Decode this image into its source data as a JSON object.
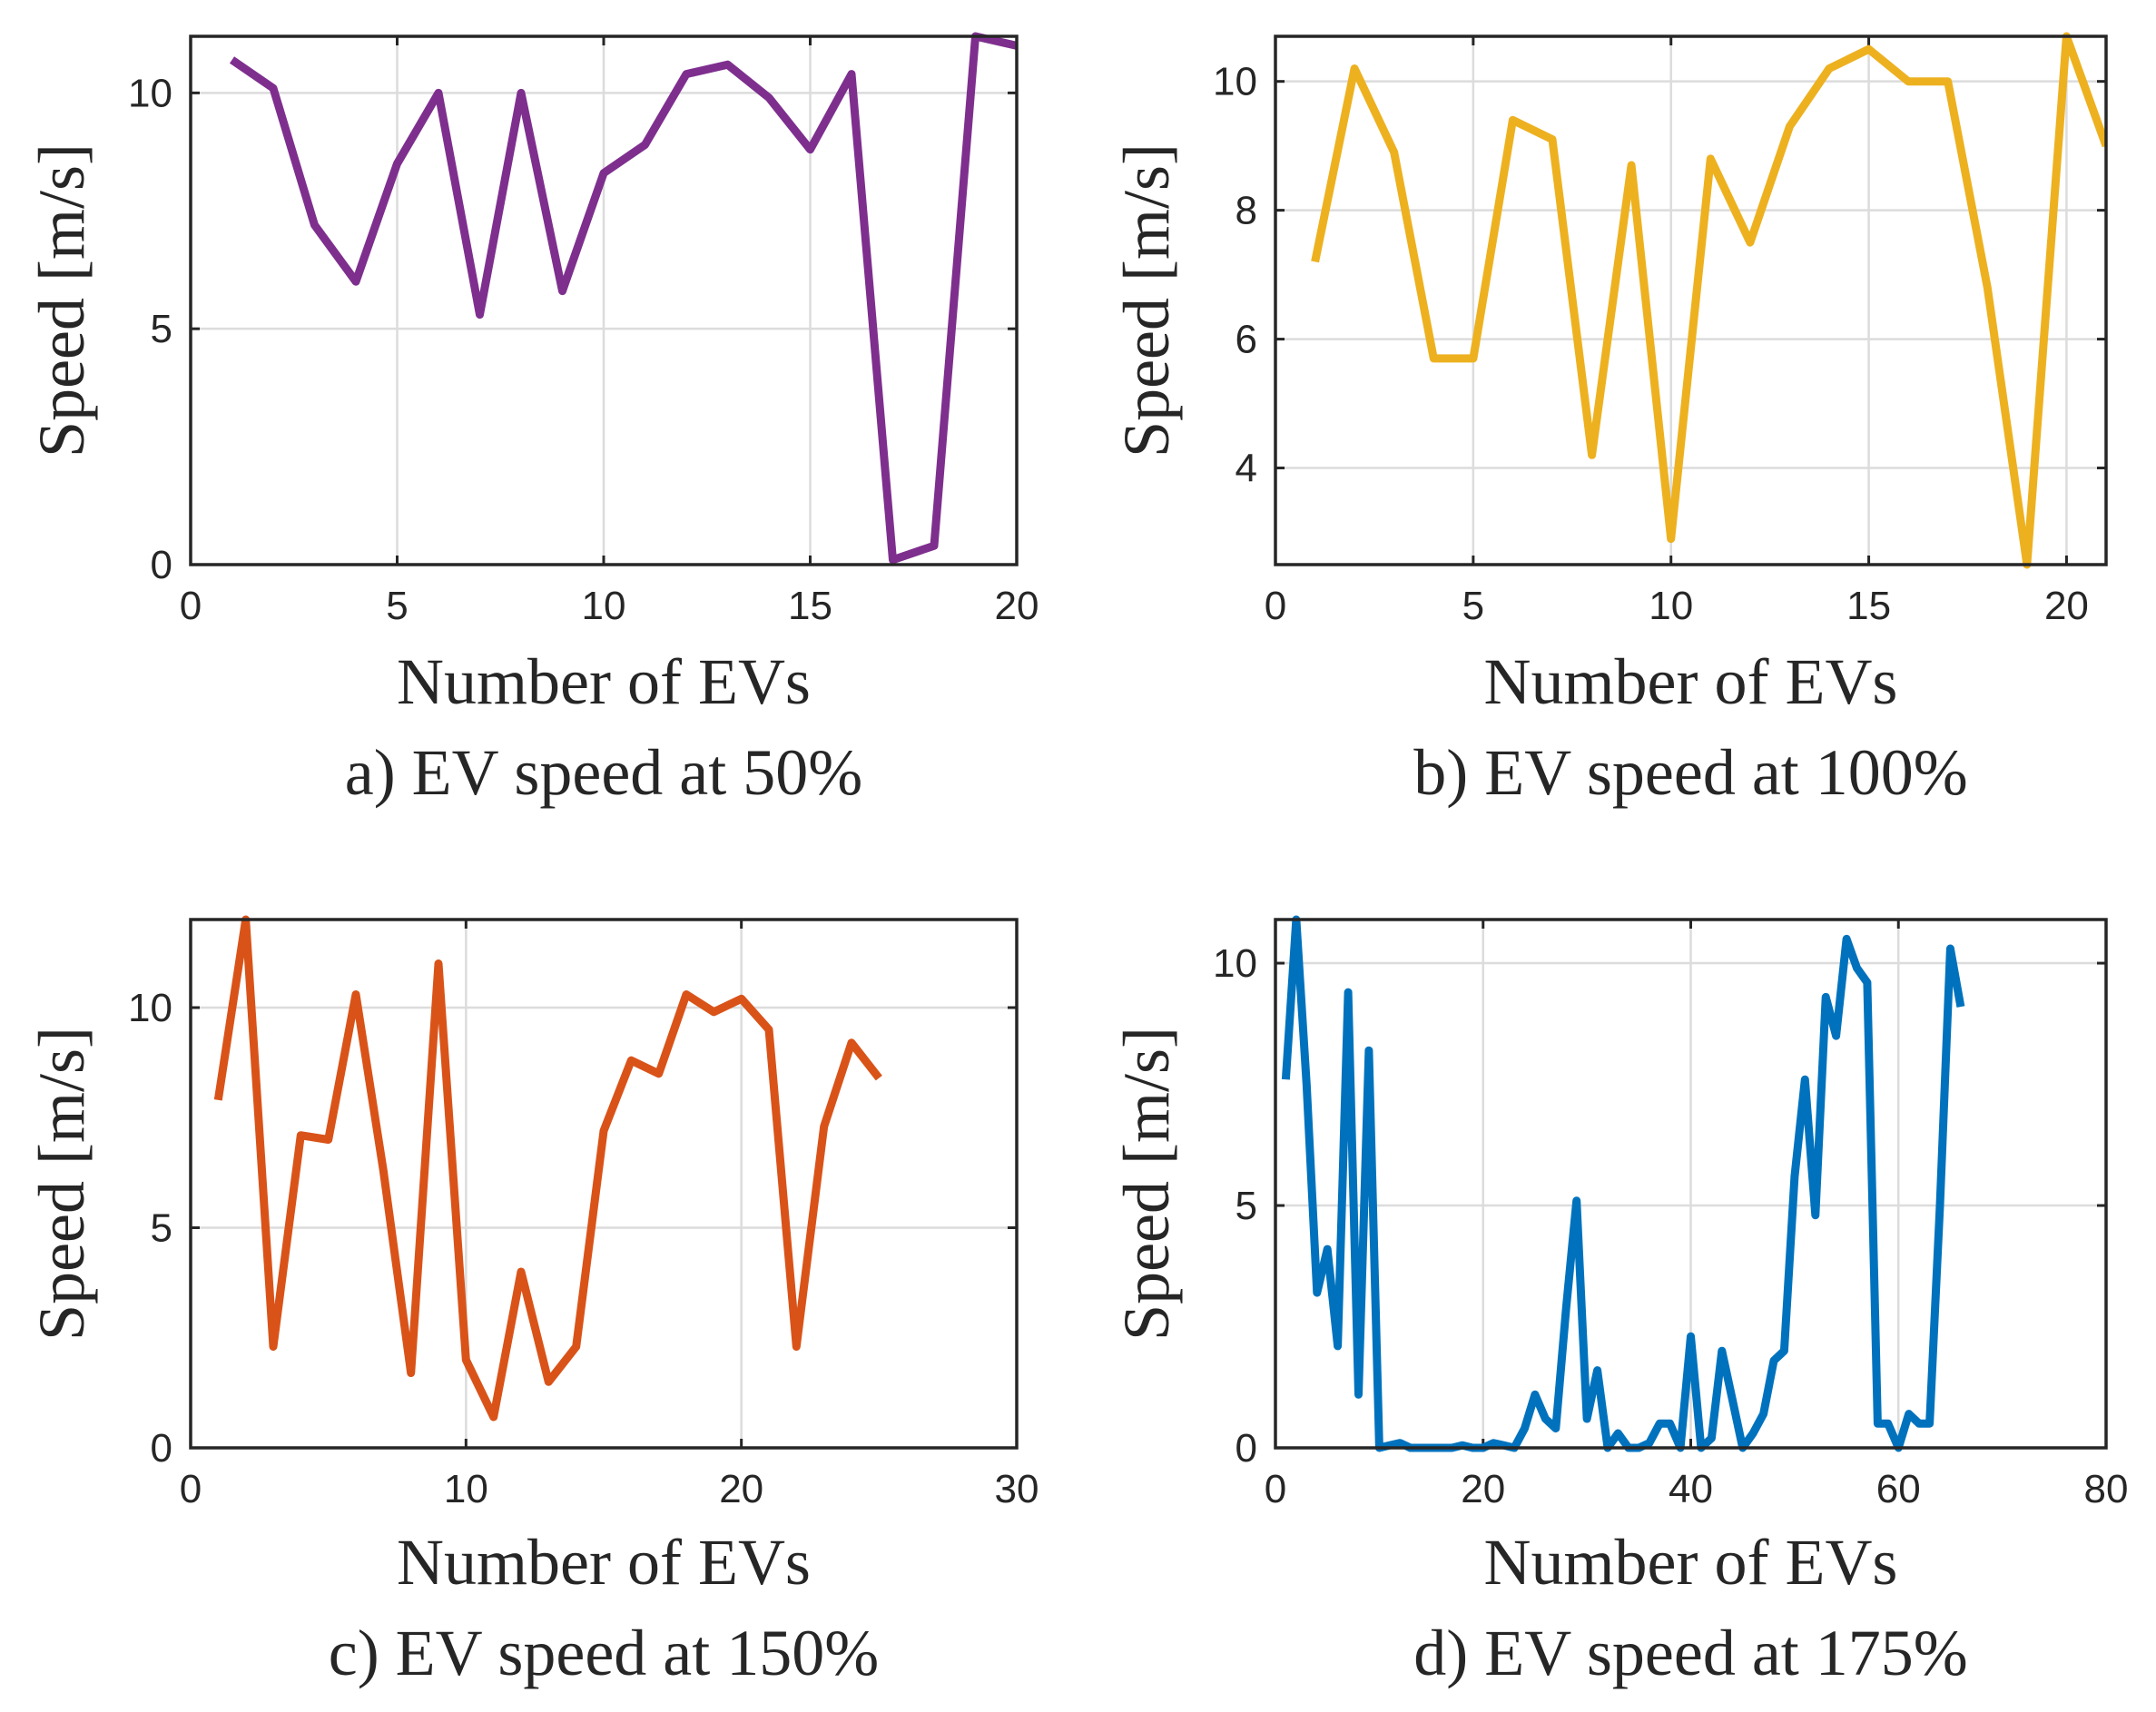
{
  "chart_data": [
    {
      "type": "line",
      "caption": "a) EV speed at 50%",
      "xlabel": "Number of EVs",
      "ylabel": "Speed [m/s]",
      "xlim": [
        0,
        20
      ],
      "ylim": [
        0,
        11.2
      ],
      "xticks": [
        0,
        5,
        10,
        15,
        20
      ],
      "yticks": [
        0,
        5,
        10
      ],
      "color": "#7E2F8E",
      "grid": true,
      "x": [
        1,
        2,
        3,
        4,
        5,
        6,
        7,
        8,
        9,
        10,
        11,
        12,
        13,
        14,
        15,
        16,
        17,
        18,
        19,
        20
      ],
      "y": [
        10.7,
        10.1,
        7.2,
        6.0,
        8.5,
        10.0,
        5.3,
        10.0,
        5.8,
        8.3,
        8.9,
        10.4,
        10.6,
        9.9,
        8.8,
        10.4,
        0.1,
        0.4,
        11.2,
        11.0
      ]
    },
    {
      "type": "line",
      "caption": "b) EV speed at 100%",
      "xlabel": "Number of EVs",
      "ylabel": "Speed [m/s]",
      "xlim": [
        0,
        21
      ],
      "ylim": [
        2.5,
        10.7
      ],
      "xticks": [
        0,
        5,
        10,
        15,
        20
      ],
      "yticks": [
        4,
        6,
        8,
        10
      ],
      "color": "#EDB120",
      "grid": true,
      "x": [
        1,
        2,
        3,
        4,
        5,
        6,
        7,
        8,
        9,
        10,
        11,
        12,
        13,
        14,
        15,
        16,
        17,
        18,
        19,
        20,
        21
      ],
      "y": [
        7.2,
        10.2,
        8.9,
        5.7,
        5.7,
        9.4,
        9.1,
        4.2,
        8.7,
        2.9,
        8.8,
        7.5,
        9.3,
        10.2,
        10.5,
        10.0,
        10.0,
        6.8,
        2.5,
        10.7,
        9.0
      ]
    },
    {
      "type": "line",
      "caption": "c) EV speed at 150%",
      "xlabel": "Number of EVs",
      "ylabel": "Speed [m/s]",
      "xlim": [
        0,
        30
      ],
      "ylim": [
        0,
        12
      ],
      "xticks": [
        0,
        10,
        20,
        30
      ],
      "yticks": [
        0,
        5,
        10
      ],
      "color": "#D95319",
      "grid": true,
      "x": [
        1,
        2,
        3,
        4,
        5,
        6,
        7,
        8,
        9,
        10,
        11,
        12,
        13,
        14,
        15,
        16,
        17,
        18,
        19,
        20,
        21,
        22,
        23,
        24,
        25
      ],
      "y": [
        7.9,
        12.0,
        2.3,
        7.1,
        7.0,
        10.3,
        6.3,
        1.7,
        11.0,
        2.0,
        0.7,
        4.0,
        1.5,
        2.3,
        7.2,
        8.8,
        8.5,
        10.3,
        9.9,
        10.2,
        9.5,
        2.3,
        7.3,
        9.2,
        8.4
      ]
    },
    {
      "type": "line",
      "caption": "d) EV speed at 175%",
      "xlabel": "Number of EVs",
      "ylabel": "Speed [m/s]",
      "xlim": [
        0,
        80
      ],
      "ylim": [
        0,
        10.9
      ],
      "xticks": [
        0,
        20,
        40,
        60,
        80
      ],
      "yticks": [
        0,
        5,
        10
      ],
      "color": "#0072BD",
      "grid": true,
      "x": [
        1,
        2,
        3,
        4,
        5,
        6,
        7,
        8,
        9,
        10,
        11,
        12,
        13,
        14,
        15,
        16,
        17,
        18,
        19,
        20,
        21,
        22,
        23,
        24,
        25,
        26,
        27,
        28,
        29,
        30,
        31,
        32,
        33,
        34,
        35,
        36,
        37,
        38,
        39,
        40,
        41,
        42,
        43,
        44,
        45,
        46,
        47,
        48,
        49,
        50,
        51,
        52,
        53,
        54,
        55,
        56,
        57,
        58,
        59,
        60,
        61,
        62,
        63,
        64,
        65,
        66
      ],
      "y": [
        7.6,
        10.9,
        7.5,
        3.2,
        4.1,
        2.1,
        9.4,
        1.1,
        8.2,
        0.0,
        0.05,
        0.1,
        0.0,
        0.0,
        0.0,
        0.0,
        0.0,
        0.05,
        0.0,
        0.0,
        0.1,
        0.05,
        0.0,
        0.4,
        1.1,
        0.6,
        0.4,
        2.9,
        5.1,
        0.6,
        1.6,
        0.0,
        0.3,
        0.0,
        0.0,
        0.1,
        0.5,
        0.5,
        0.0,
        2.3,
        0.0,
        0.2,
        2.0,
        1.0,
        0.0,
        0.3,
        0.7,
        1.8,
        2.0,
        5.6,
        7.6,
        4.8,
        9.3,
        8.5,
        10.5,
        9.9,
        9.6,
        0.5,
        0.5,
        0.0,
        0.7,
        0.5,
        0.5,
        5.0,
        10.3,
        9.1
      ]
    }
  ]
}
